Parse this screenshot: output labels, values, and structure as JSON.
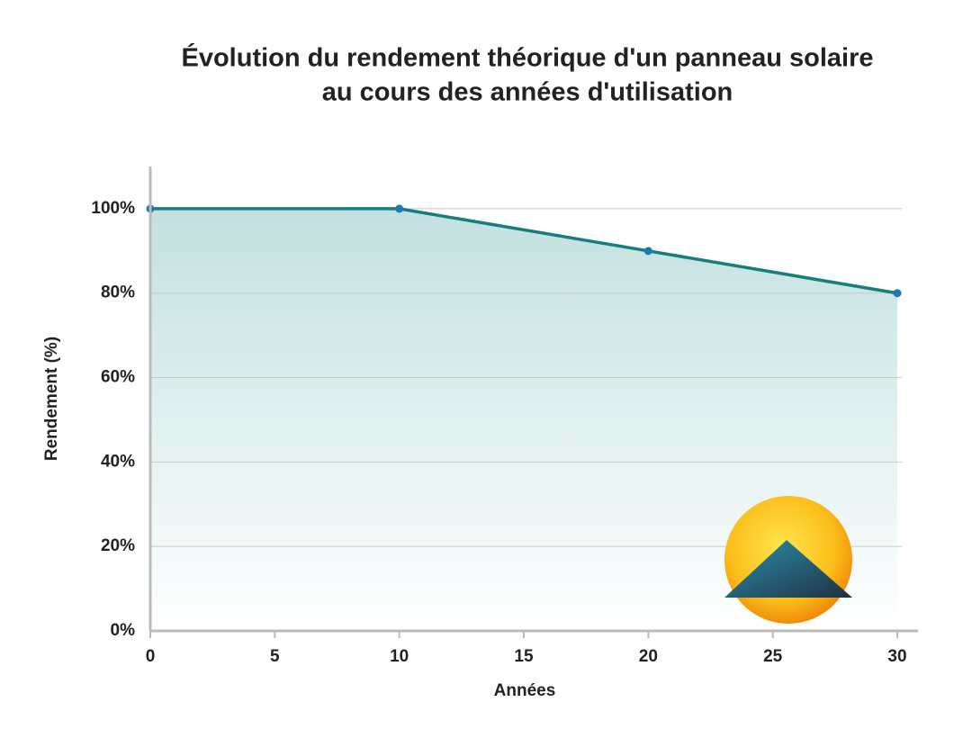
{
  "chart_data": {
    "type": "area",
    "title": [
      "Évolution du rendement théorique d'un panneau solaire",
      "au cours des années d'utilisation"
    ],
    "x_label": "Années",
    "y_label": "Rendement (%)",
    "x": [
      0,
      10,
      20,
      30
    ],
    "series": [
      {
        "color": "#177e80",
        "marker_color": "#1f78b4",
        "fill_color": "#c3e0e0",
        "values": [
          100,
          100,
          90,
          80
        ]
      }
    ],
    "xlim": [
      0,
      30
    ],
    "xticks": [
      0,
      5,
      10,
      15,
      20,
      25,
      30
    ],
    "ylim": [
      0,
      110
    ],
    "yticks": [
      {
        "value": 0,
        "label": "0%"
      },
      {
        "value": 20,
        "label": "20%"
      },
      {
        "value": 40,
        "label": "40%"
      },
      {
        "value": 60,
        "label": "60%"
      },
      {
        "value": 80,
        "label": "80%"
      },
      {
        "value": 100,
        "label": "100%"
      }
    ],
    "grid": true
  }
}
